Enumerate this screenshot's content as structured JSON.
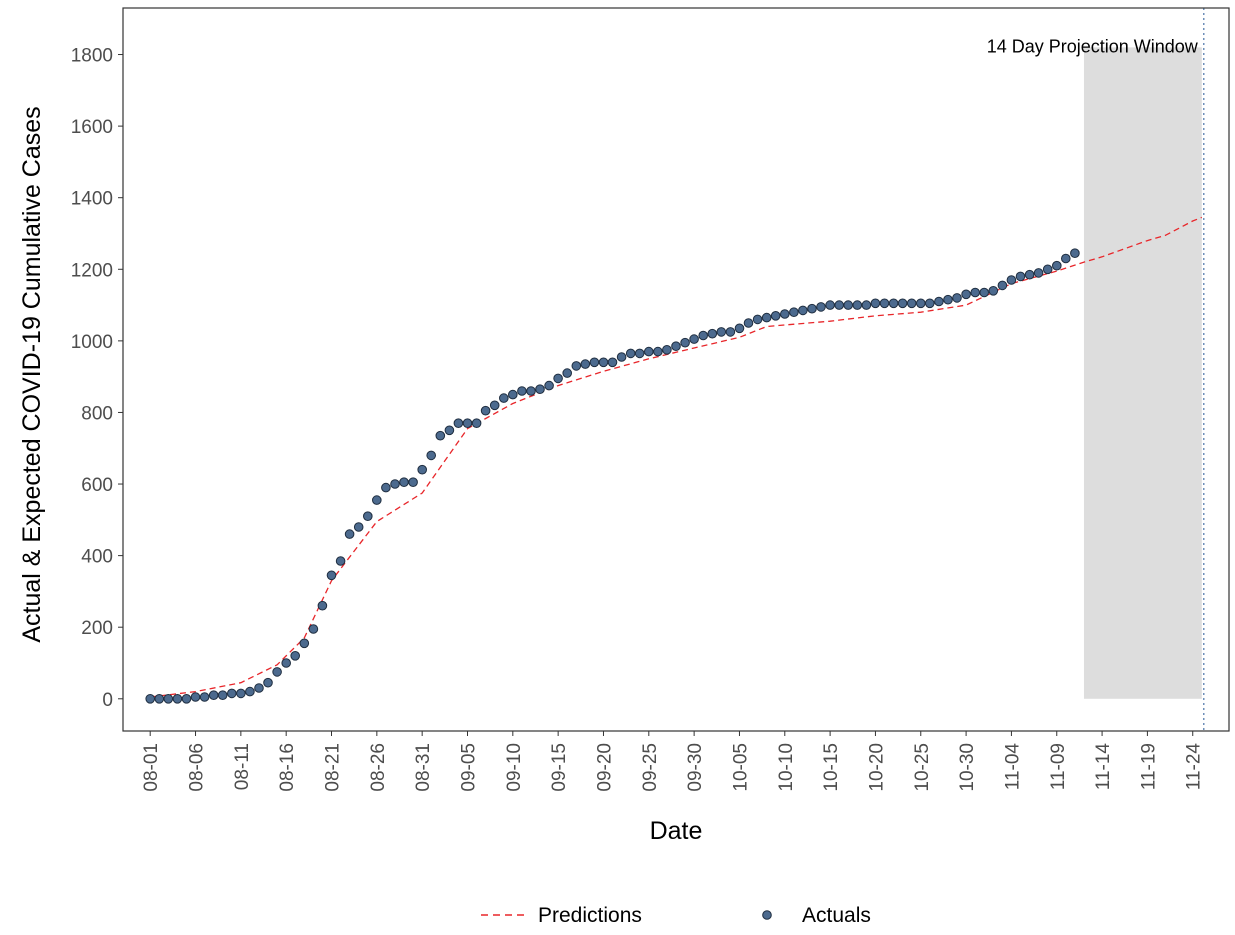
{
  "chart_data": {
    "type": "scatter",
    "xlabel": "Date",
    "ylabel": "Actual & Expected COVID-19 Cumulative Cases",
    "ylim": [
      -90,
      1930
    ],
    "xlim": [
      "07-29",
      "11-28"
    ],
    "y_ticks": [
      0,
      200,
      400,
      600,
      800,
      1000,
      1200,
      1400,
      1600,
      1800
    ],
    "x_tick_labels": [
      "08-01",
      "08-06",
      "08-11",
      "08-16",
      "08-21",
      "08-26",
      "08-31",
      "09-05",
      "09-10",
      "09-15",
      "09-20",
      "09-25",
      "09-30",
      "10-05",
      "10-10",
      "10-15",
      "10-20",
      "10-25",
      "10-30",
      "11-04",
      "11-09",
      "11-14",
      "11-19",
      "11-24"
    ],
    "projection_window": {
      "label": "14 Day Projection Window",
      "start": "11-12",
      "end": "11-25",
      "y_range": [
        0,
        1820
      ],
      "fill": "#dddddd",
      "end_marker_date": "11-25",
      "marker_style": "dotted",
      "marker_color": "#4a74a8"
    },
    "grid": false,
    "legend_position": "bottom",
    "series": [
      {
        "name": "Predictions",
        "style": "dashed-line",
        "color": "#e8262a",
        "x": [
          "08-01",
          "08-06",
          "08-11",
          "08-15",
          "08-18",
          "08-21",
          "08-26",
          "08-31",
          "09-05",
          "09-10",
          "09-15",
          "09-20",
          "09-25",
          "09-30",
          "10-05",
          "10-08",
          "10-15",
          "10-20",
          "10-25",
          "10-30",
          "11-04",
          "11-09",
          "11-12",
          "11-14",
          "11-19",
          "11-21",
          "11-24",
          "11-25"
        ],
        "values": [
          5,
          20,
          45,
          95,
          170,
          330,
          495,
          575,
          755,
          825,
          875,
          915,
          950,
          980,
          1010,
          1040,
          1055,
          1070,
          1080,
          1100,
          1160,
          1195,
          1220,
          1235,
          1280,
          1295,
          1335,
          1345
        ]
      },
      {
        "name": "Actuals",
        "style": "points",
        "color": "#4c6a8e",
        "x": [
          "08-01",
          "08-02",
          "08-03",
          "08-04",
          "08-05",
          "08-06",
          "08-07",
          "08-08",
          "08-09",
          "08-10",
          "08-11",
          "08-12",
          "08-13",
          "08-14",
          "08-15",
          "08-16",
          "08-17",
          "08-18",
          "08-19",
          "08-20",
          "08-21",
          "08-22",
          "08-23",
          "08-24",
          "08-25",
          "08-26",
          "08-27",
          "08-28",
          "08-29",
          "08-30",
          "08-31",
          "09-01",
          "09-02",
          "09-03",
          "09-04",
          "09-05",
          "09-06",
          "09-07",
          "09-08",
          "09-09",
          "09-10",
          "09-11",
          "09-12",
          "09-13",
          "09-14",
          "09-15",
          "09-16",
          "09-17",
          "09-18",
          "09-19",
          "09-20",
          "09-21",
          "09-22",
          "09-23",
          "09-24",
          "09-25",
          "09-26",
          "09-27",
          "09-28",
          "09-29",
          "09-30",
          "10-01",
          "10-02",
          "10-03",
          "10-04",
          "10-05",
          "10-06",
          "10-07",
          "10-08",
          "10-09",
          "10-10",
          "10-11",
          "10-12",
          "10-13",
          "10-14",
          "10-15",
          "10-16",
          "10-17",
          "10-18",
          "10-19",
          "10-20",
          "10-21",
          "10-22",
          "10-23",
          "10-24",
          "10-25",
          "10-26",
          "10-27",
          "10-28",
          "10-29",
          "10-30",
          "10-31",
          "11-01",
          "11-02",
          "11-03",
          "11-04",
          "11-05",
          "11-06",
          "11-07",
          "11-08",
          "11-09",
          "11-10",
          "11-11"
        ],
        "values": [
          0,
          0,
          0,
          0,
          0,
          5,
          5,
          10,
          10,
          15,
          15,
          20,
          30,
          45,
          75,
          100,
          120,
          155,
          195,
          260,
          345,
          385,
          460,
          480,
          510,
          555,
          590,
          600,
          605,
          605,
          640,
          680,
          735,
          750,
          770,
          770,
          770,
          805,
          820,
          840,
          850,
          860,
          860,
          865,
          875,
          895,
          910,
          930,
          935,
          940,
          940,
          940,
          955,
          965,
          965,
          970,
          970,
          975,
          985,
          995,
          1005,
          1015,
          1020,
          1025,
          1025,
          1035,
          1050,
          1060,
          1065,
          1070,
          1075,
          1080,
          1085,
          1090,
          1095,
          1100,
          1100,
          1100,
          1100,
          1100,
          1105,
          1105,
          1105,
          1105,
          1105,
          1105,
          1105,
          1110,
          1115,
          1120,
          1130,
          1135,
          1135,
          1140,
          1155,
          1170,
          1180,
          1185,
          1190,
          1200,
          1210,
          1230,
          1245
        ]
      }
    ]
  }
}
